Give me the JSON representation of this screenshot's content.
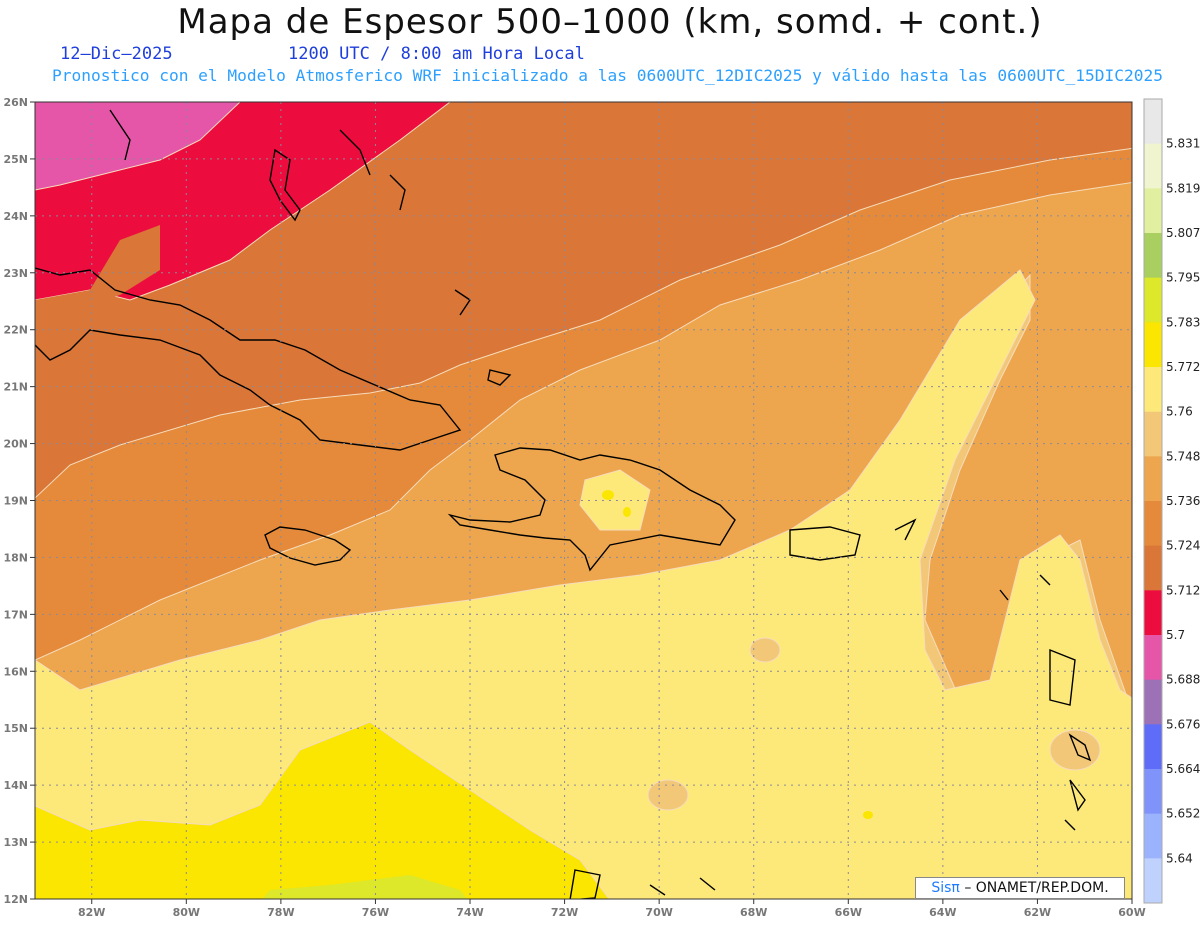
{
  "header": {
    "title": "Mapa de Espesor 500–1000 (km, somd. + cont.)",
    "date": "12–Dic–2025",
    "time": "1200 UTC / 8:00 am Hora Local",
    "description": "Pronostico con el Modelo Atmosferico WRF inicializado a las 0600UTC_12DIC2025 y válido hasta las  0600UTC_15DIC2025"
  },
  "map": {
    "lat_labels": [
      "26N",
      "25N",
      "24N",
      "23N",
      "22N",
      "21N",
      "20N",
      "19N",
      "18N",
      "17N",
      "16N",
      "15N",
      "14N",
      "13N",
      "12N"
    ],
    "lon_labels": [
      "82W",
      "80W",
      "78W",
      "76W",
      "74W",
      "72W",
      "70W",
      "68W",
      "66W",
      "64W",
      "62W",
      "60W"
    ],
    "lat_range": [
      12,
      26
    ],
    "lon_range": [
      -83.2,
      -60.0
    ],
    "gridlines": "dotted"
  },
  "colorbar": {
    "levels": [
      "5.831",
      "5.819",
      "5.807",
      "5.795",
      "5.783",
      "5.772",
      "5.76",
      "5.748",
      "5.736",
      "5.724",
      "5.712",
      "5.7",
      "5.688",
      "5.676",
      "5.664",
      "5.652",
      "5.64"
    ],
    "colors": [
      "#e8e8e8",
      "#f0f5d0",
      "#e0f0a0",
      "#a8cf60",
      "#dde82a",
      "#fae600",
      "#fde97a",
      "#f2c878",
      "#eda64e",
      "#e48a3a",
      "#d97638",
      "#ec0d3e",
      "#e556a8",
      "#9c71b5",
      "#5f6cf8",
      "#7f93fb",
      "#9bb2fd",
      "#bfd2fe"
    ]
  },
  "credit": {
    "brand": "Sisπ",
    "text": "– ONAMET/REP.DOM."
  }
}
